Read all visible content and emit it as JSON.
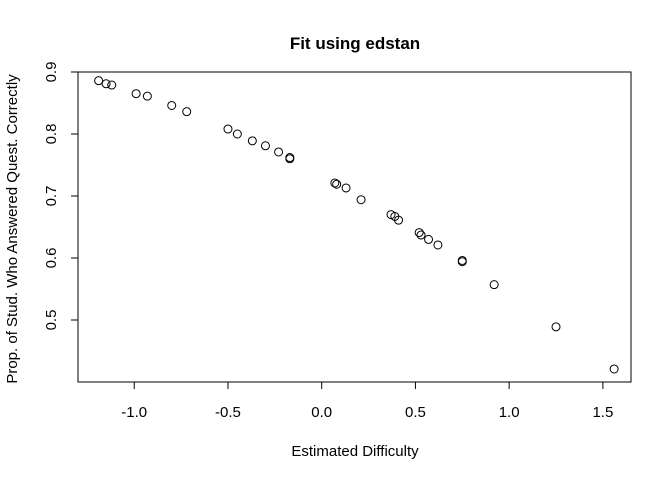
{
  "chart_data": {
    "type": "scatter",
    "title": "Fit using edstan",
    "xlabel": "Estimated Difficulty",
    "ylabel": "Prop. of Stud. Who Answered Quest. Correctly",
    "xlim": [
      -1.3,
      1.65
    ],
    "ylim": [
      0.4,
      0.9
    ],
    "x_ticks": [
      -1.0,
      -0.5,
      0.0,
      0.5,
      1.0,
      1.5
    ],
    "x_tick_labels": [
      "-1.0",
      "-0.5",
      "0.0",
      "0.5",
      "1.0",
      "1.5"
    ],
    "y_ticks": [
      0.5,
      0.6,
      0.7,
      0.8,
      0.9
    ],
    "y_tick_labels": [
      "0.5",
      "0.6",
      "0.7",
      "0.8",
      "0.9"
    ],
    "grid": false,
    "marker": "open-circle",
    "points": [
      {
        "x": -1.19,
        "y": 0.886
      },
      {
        "x": -1.15,
        "y": 0.881
      },
      {
        "x": -1.12,
        "y": 0.879
      },
      {
        "x": -0.99,
        "y": 0.865
      },
      {
        "x": -0.93,
        "y": 0.861
      },
      {
        "x": -0.8,
        "y": 0.846
      },
      {
        "x": -0.72,
        "y": 0.836
      },
      {
        "x": -0.5,
        "y": 0.808
      },
      {
        "x": -0.45,
        "y": 0.8
      },
      {
        "x": -0.37,
        "y": 0.789
      },
      {
        "x": -0.3,
        "y": 0.781
      },
      {
        "x": -0.23,
        "y": 0.771
      },
      {
        "x": -0.17,
        "y": 0.762
      },
      {
        "x": -0.17,
        "y": 0.76
      },
      {
        "x": 0.07,
        "y": 0.721
      },
      {
        "x": 0.08,
        "y": 0.719
      },
      {
        "x": 0.13,
        "y": 0.713
      },
      {
        "x": 0.21,
        "y": 0.694
      },
      {
        "x": 0.37,
        "y": 0.67
      },
      {
        "x": 0.39,
        "y": 0.667
      },
      {
        "x": 0.41,
        "y": 0.661
      },
      {
        "x": 0.52,
        "y": 0.641
      },
      {
        "x": 0.53,
        "y": 0.637
      },
      {
        "x": 0.57,
        "y": 0.63
      },
      {
        "x": 0.62,
        "y": 0.621
      },
      {
        "x": 0.75,
        "y": 0.596
      },
      {
        "x": 0.75,
        "y": 0.594
      },
      {
        "x": 0.92,
        "y": 0.557
      },
      {
        "x": 1.25,
        "y": 0.489
      },
      {
        "x": 1.56,
        "y": 0.421
      }
    ]
  }
}
